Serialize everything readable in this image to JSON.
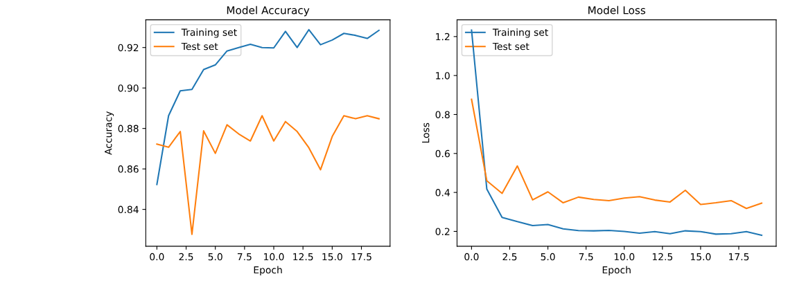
{
  "chart_data": [
    {
      "type": "line",
      "title": "Model Accuracy",
      "xlabel": "Epoch",
      "ylabel": "Accuracy",
      "x": [
        0,
        1,
        2,
        3,
        4,
        5,
        6,
        7,
        8,
        9,
        10,
        11,
        12,
        13,
        14,
        15,
        16,
        17,
        18,
        19
      ],
      "series": [
        {
          "name": "Training set",
          "color": "#1f77b4",
          "values": [
            0.8523,
            0.8863,
            0.8986,
            0.8993,
            0.9091,
            0.9114,
            0.9183,
            0.92,
            0.9216,
            0.92,
            0.9198,
            0.928,
            0.92,
            0.9288,
            0.9214,
            0.9237,
            0.927,
            0.926,
            0.9245,
            0.9285
          ]
        },
        {
          "name": "Test set",
          "color": "#ff7f0e",
          "values": [
            0.8723,
            0.8707,
            0.8785,
            0.8277,
            0.8788,
            0.8677,
            0.8818,
            0.8773,
            0.8738,
            0.8863,
            0.8738,
            0.8834,
            0.8785,
            0.8705,
            0.8596,
            0.876,
            0.8863,
            0.8848,
            0.8863,
            0.8848
          ]
        }
      ],
      "xlim": [
        -0.95,
        19.95
      ],
      "xticks": [
        {
          "value": 0,
          "label": "0.0"
        },
        {
          "value": 2.5,
          "label": "2.5"
        },
        {
          "value": 5,
          "label": "5.0"
        },
        {
          "value": 7.5,
          "label": "7.5"
        },
        {
          "value": 10,
          "label": "10.0"
        },
        {
          "value": 12.5,
          "label": "12.5"
        },
        {
          "value": 15,
          "label": "15.0"
        },
        {
          "value": 17.5,
          "label": "17.5"
        }
      ],
      "ylim": [
        0.8218,
        0.9337
      ],
      "yticks": [
        {
          "value": 0.84,
          "label": "0.84"
        },
        {
          "value": 0.86,
          "label": "0.86"
        },
        {
          "value": 0.88,
          "label": "0.88"
        },
        {
          "value": 0.9,
          "label": "0.90"
        },
        {
          "value": 0.92,
          "label": "0.92"
        }
      ],
      "legend": "top left",
      "grid": false
    },
    {
      "type": "line",
      "title": "Model Loss",
      "xlabel": "Epoch",
      "ylabel": "Loss",
      "x": [
        0,
        1,
        2,
        3,
        4,
        5,
        6,
        7,
        8,
        9,
        10,
        11,
        12,
        13,
        14,
        15,
        16,
        17,
        18,
        19
      ],
      "series": [
        {
          "name": "Training set",
          "color": "#1f77b4",
          "values": [
            1.233,
            0.417,
            0.272,
            0.25,
            0.23,
            0.235,
            0.213,
            0.204,
            0.203,
            0.205,
            0.2,
            0.191,
            0.199,
            0.188,
            0.203,
            0.199,
            0.186,
            0.188,
            0.199,
            0.18
          ]
        },
        {
          "name": "Test set",
          "color": "#ff7f0e",
          "values": [
            0.878,
            0.46,
            0.395,
            0.536,
            0.362,
            0.403,
            0.347,
            0.376,
            0.364,
            0.358,
            0.371,
            0.378,
            0.361,
            0.351,
            0.411,
            0.338,
            0.347,
            0.358,
            0.318,
            0.345
          ]
        }
      ],
      "xlim": [
        -0.95,
        19.95
      ],
      "xticks": [
        {
          "value": 0,
          "label": "0.0"
        },
        {
          "value": 2.5,
          "label": "2.5"
        },
        {
          "value": 5,
          "label": "5.0"
        },
        {
          "value": 7.5,
          "label": "7.5"
        },
        {
          "value": 10,
          "label": "10.0"
        },
        {
          "value": 12.5,
          "label": "12.5"
        },
        {
          "value": 15,
          "label": "15.0"
        },
        {
          "value": 17.5,
          "label": "17.5"
        }
      ],
      "ylim": [
        0.124,
        1.286
      ],
      "yticks": [
        {
          "value": 0.2,
          "label": "0.2"
        },
        {
          "value": 0.4,
          "label": "0.4"
        },
        {
          "value": 0.6,
          "label": "0.6"
        },
        {
          "value": 0.8,
          "label": "0.8"
        },
        {
          "value": 1.0,
          "label": "1.0"
        },
        {
          "value": 1.2,
          "label": "1.2"
        }
      ],
      "legend": "top left",
      "grid": false
    }
  ]
}
